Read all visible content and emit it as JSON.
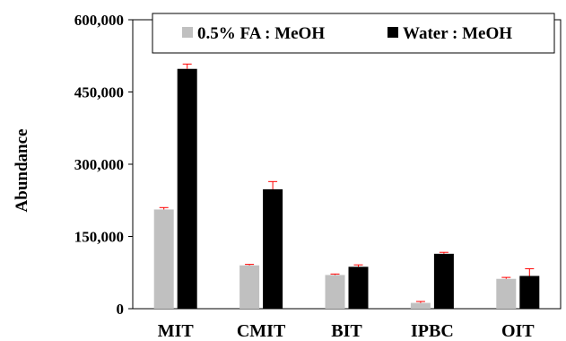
{
  "chart_data": {
    "type": "bar",
    "categories": [
      "MIT",
      "CMIT",
      "BIT",
      "IPBC",
      "OIT"
    ],
    "series": [
      {
        "name": "0.5% FA : MeOH",
        "color": "#c0c0c0",
        "values": [
          206000,
          90000,
          70000,
          12000,
          62000
        ],
        "errors": [
          4000,
          2000,
          2000,
          3000,
          3000
        ]
      },
      {
        "name": "Water : MeOH",
        "color": "#000000",
        "values": [
          498000,
          248000,
          87000,
          114000,
          68000
        ],
        "errors": [
          10000,
          16000,
          4000,
          3000,
          15000
        ]
      }
    ],
    "error_bar_color": "#ff0000",
    "xlabel": "",
    "ylabel": "Abundance",
    "ylim": [
      0,
      600000
    ],
    "yticks": [
      0,
      150000,
      300000,
      450000,
      600000
    ],
    "ytick_labels": [
      "0",
      "150,000",
      "300,000",
      "450,000",
      "600,000"
    ],
    "grid": false,
    "legend_position": "top"
  }
}
